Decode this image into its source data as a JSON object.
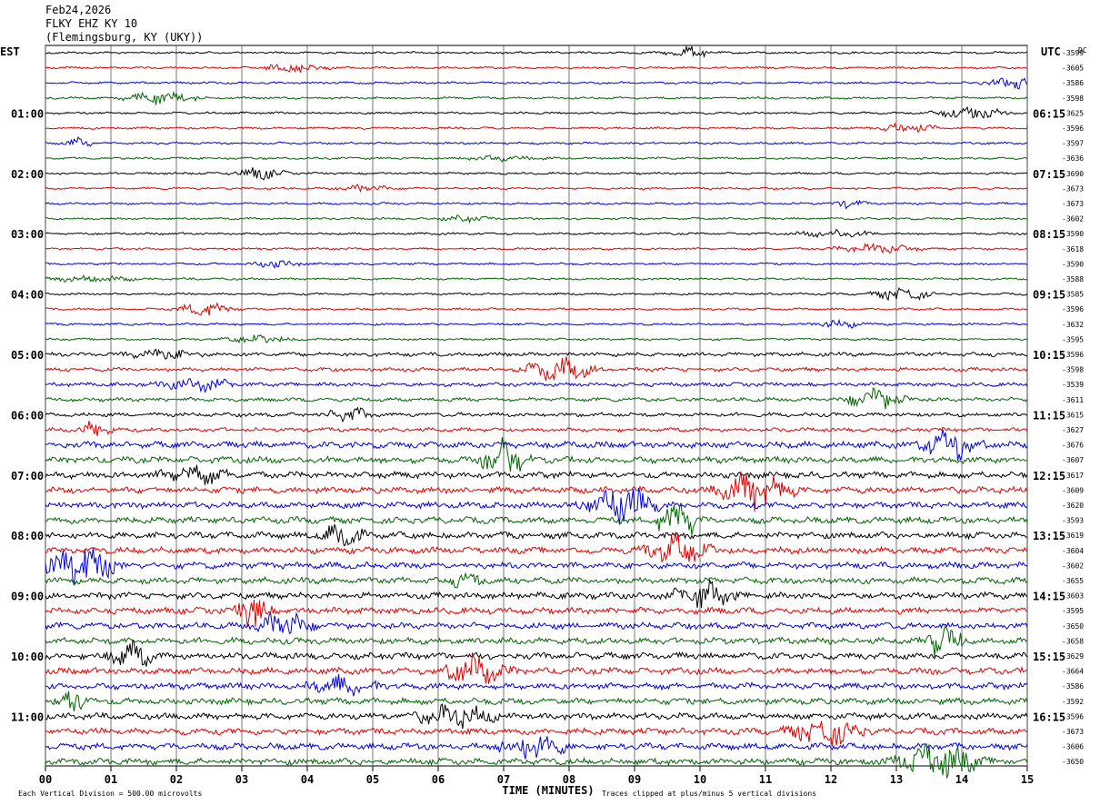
{
  "header": {
    "date": "Feb24,2026",
    "station": "FLKY EHZ KY 10",
    "location": "(Flemingsburg, KY (UKY))"
  },
  "left_tz": "EST",
  "right_tz": "UTC",
  "dc_label": "DC",
  "chart_data": {
    "type": "line",
    "title": "",
    "xlabel": "TIME (MINUTES)",
    "x_ticks": [
      "00",
      "01",
      "02",
      "03",
      "04",
      "05",
      "06",
      "07",
      "08",
      "09",
      "10",
      "11",
      "12",
      "13",
      "14",
      "15"
    ],
    "xlim": [
      0,
      15
    ],
    "left_hour_labels": [
      "01:00",
      "02:00",
      "03:00",
      "04:00",
      "05:00",
      "06:00",
      "07:00",
      "08:00",
      "09:00",
      "10:00",
      "11:00"
    ],
    "right_hour_labels": [
      "06:15",
      "07:15",
      "08:15",
      "09:15",
      "10:15",
      "11:15",
      "12:15",
      "13:15",
      "14:15",
      "15:15",
      "16:15"
    ],
    "hour_label_rows": [
      4,
      8,
      12,
      16,
      20,
      24,
      28,
      32,
      36,
      40,
      44
    ],
    "trace_count": 48,
    "trace_colors": [
      "#000000",
      "#e00000",
      "#0000e0",
      "#006400"
    ],
    "dc_offsets": [
      "-3599",
      "-3605",
      "-3586",
      "-3598",
      "-3625",
      "-3596",
      "-3597",
      "-3636",
      "-3690",
      "-3673",
      "-3673",
      "-3602",
      "-3590",
      "-3618",
      "-3590",
      "-3588",
      "-3585",
      "-3596",
      "-3632",
      "-3595",
      "-3596",
      "-3598",
      "-3539",
      "-3611",
      "-3615",
      "-3627",
      "-3676",
      "-3607",
      "-3617",
      "-3609",
      "-3620",
      "-3593",
      "-3619",
      "-3604",
      "-3602",
      "-3655",
      "-3603",
      "-3595",
      "-3650",
      "-3658",
      "-3629",
      "-3664",
      "-3586",
      "-3592",
      "-3596",
      "-3673",
      "-3606",
      "-3650"
    ],
    "footer_scale": "Each Vertical Division =  500.00 microvolts",
    "footer_clip": "Traces clipped at plus/minus 5 vertical divisions"
  }
}
